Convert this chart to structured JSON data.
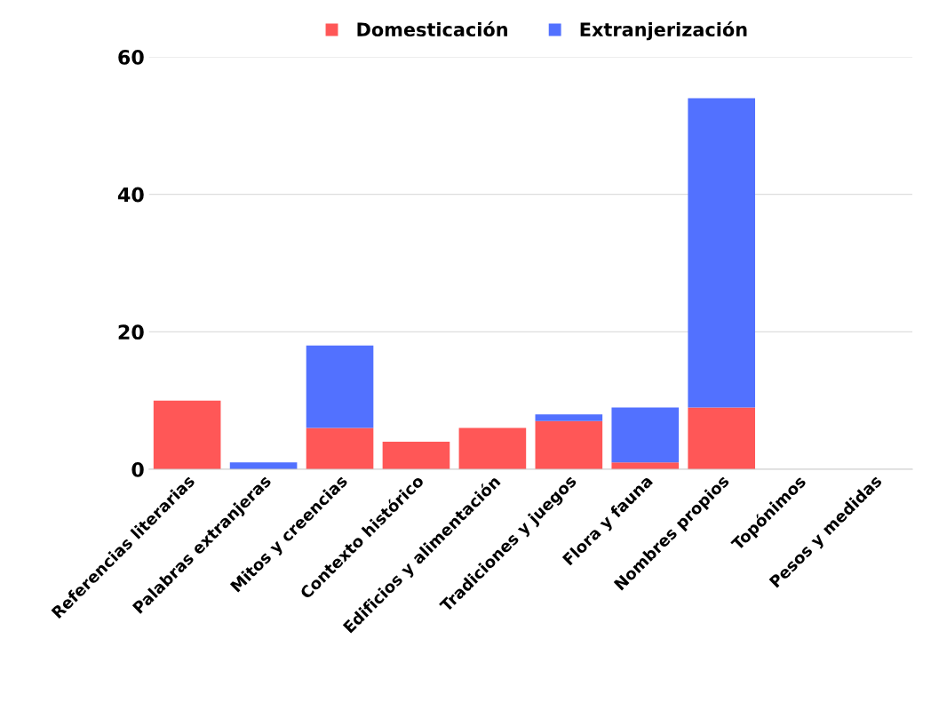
{
  "chart_data": {
    "type": "bar",
    "stacked": true,
    "categories": [
      "Referencias literarias",
      "Palabras extranjeras",
      "Mitos y creencias",
      "Contexto histórico",
      "Edificios y alimentación",
      "Tradiciones y juegos",
      "Flora y fauna",
      "Nombres propios",
      "Topónimos",
      "Pesos y medidas"
    ],
    "series": [
      {
        "name": "Domesticación",
        "color": "#ff5757",
        "values": [
          10,
          0,
          6,
          4,
          6,
          7,
          1,
          9,
          0,
          0
        ]
      },
      {
        "name": "Extranjerización",
        "color": "#5271ff",
        "values": [
          0,
          1,
          12,
          0,
          0,
          1,
          8,
          45,
          0,
          0
        ]
      }
    ],
    "ylim": [
      0,
      60
    ],
    "yticks": [
      0,
      20,
      40,
      60
    ],
    "grid": "y",
    "legend": "top"
  }
}
